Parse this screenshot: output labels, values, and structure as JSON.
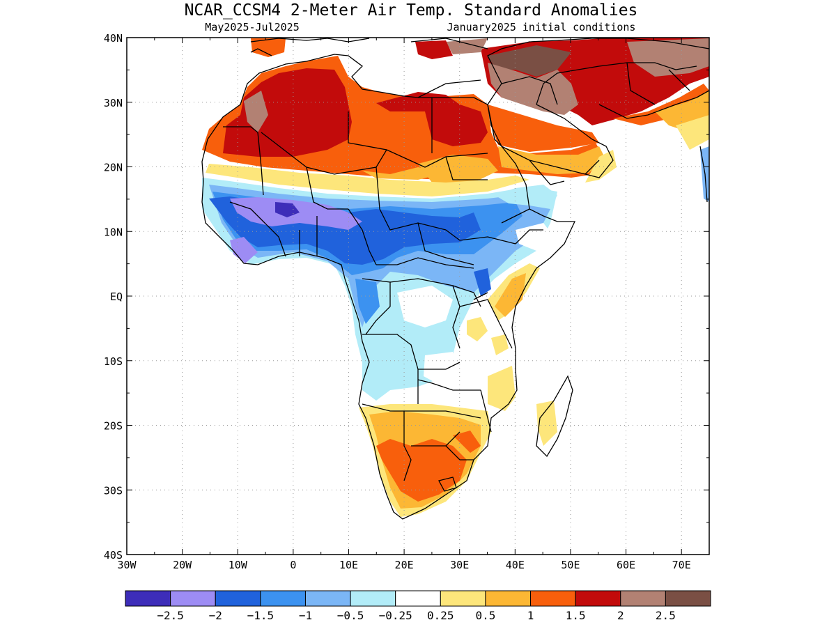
{
  "title": "NCAR_CCSM4 2-Meter Air Temp. Standard Anomalies",
  "period": "May2025-Jul2025",
  "init": "January2025 initial conditions",
  "lon_labels": [
    "30W",
    "20W",
    "10W",
    "0",
    "10E",
    "20E",
    "30E",
    "40E",
    "50E",
    "60E",
    "70E"
  ],
  "lat_labels": [
    "40N",
    "30N",
    "20N",
    "10N",
    "EQ",
    "10S",
    "20S",
    "30S",
    "40S"
  ],
  "colorbar": {
    "colors": [
      "#3d2db9",
      "#9d8cf4",
      "#2062dc",
      "#3c92f0",
      "#7bb6f6",
      "#b2ecf8",
      "#ffffff",
      "#fde67b",
      "#fcb734",
      "#f85f0c",
      "#c20b0b",
      "#b28173",
      "#7a4f44"
    ],
    "labels": [
      "-2.5",
      "-2",
      "-1.5",
      "-1",
      "-0.5",
      "-0.25",
      "0.25",
      "0.5",
      "1",
      "1.5",
      "2",
      "2.5"
    ]
  }
}
